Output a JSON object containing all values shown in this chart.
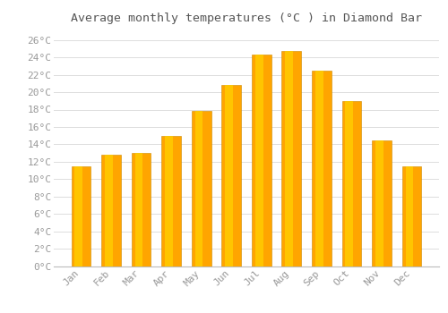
{
  "title": "Average monthly temperatures (°C ) in Diamond Bar",
  "months": [
    "Jan",
    "Feb",
    "Mar",
    "Apr",
    "May",
    "Jun",
    "Jul",
    "Aug",
    "Sep",
    "Oct",
    "Nov",
    "Dec"
  ],
  "values": [
    11.5,
    12.8,
    13.0,
    15.0,
    17.8,
    20.8,
    24.3,
    24.7,
    22.5,
    19.0,
    14.5,
    11.5
  ],
  "bar_color_main": "#FFA500",
  "bar_color_highlight": "#FFD000",
  "background_color": "#FFFFFF",
  "grid_color": "#DDDDDD",
  "ylim": [
    0,
    27
  ],
  "yticks": [
    0,
    2,
    4,
    6,
    8,
    10,
    12,
    14,
    16,
    18,
    20,
    22,
    24,
    26
  ],
  "title_fontsize": 9.5,
  "tick_fontsize": 8,
  "tick_font_color": "#999999",
  "title_color": "#555555"
}
